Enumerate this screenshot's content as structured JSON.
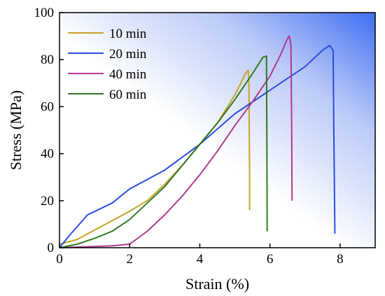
{
  "chart_data": {
    "type": "line",
    "xlabel": "Strain (%)",
    "ylabel": "Stress (MPa)",
    "xlim": [
      0,
      9
    ],
    "ylim": [
      0,
      100
    ],
    "x_ticks": [
      0,
      2,
      4,
      6,
      8
    ],
    "y_ticks": [
      0,
      20,
      40,
      60,
      80,
      100
    ],
    "grid": false,
    "legend_position": "top-left",
    "background": "white-to-blue gradient toward top-right",
    "series": [
      {
        "name": "10 min",
        "color": "#c9a227",
        "points": [
          [
            0.0,
            1.5
          ],
          [
            0.5,
            3.5
          ],
          [
            1.0,
            7.5
          ],
          [
            1.5,
            11.5
          ],
          [
            2.0,
            15.5
          ],
          [
            2.5,
            20.0
          ],
          [
            3.0,
            27.0
          ],
          [
            3.5,
            35.0
          ],
          [
            4.0,
            44.0
          ],
          [
            4.5,
            53.0
          ],
          [
            5.0,
            65.0
          ],
          [
            5.3,
            74.0
          ],
          [
            5.38,
            75.5
          ],
          [
            5.4,
            70.0
          ],
          [
            5.42,
            30.0
          ],
          [
            5.42,
            16.0
          ]
        ]
      },
      {
        "name": "20 min",
        "color": "#2a4de0",
        "points": [
          [
            0.0,
            0.0
          ],
          [
            0.3,
            5.5
          ],
          [
            0.8,
            14.0
          ],
          [
            1.5,
            19.0
          ],
          [
            2.0,
            25.0
          ],
          [
            3.0,
            33.0
          ],
          [
            4.0,
            44.0
          ],
          [
            5.0,
            57.0
          ],
          [
            6.0,
            67.0
          ],
          [
            6.5,
            72.0
          ],
          [
            7.0,
            77.0
          ],
          [
            7.5,
            84.0
          ],
          [
            7.7,
            86.0
          ],
          [
            7.8,
            84.0
          ],
          [
            7.82,
            50.0
          ],
          [
            7.85,
            6.0
          ]
        ]
      },
      {
        "name": "40 min",
        "color": "#b03a8f",
        "points": [
          [
            0.0,
            0.0
          ],
          [
            0.5,
            0.3
          ],
          [
            1.0,
            0.5
          ],
          [
            1.5,
            0.8
          ],
          [
            2.0,
            1.5
          ],
          [
            2.5,
            7.0
          ],
          [
            3.0,
            14.0
          ],
          [
            3.5,
            22.0
          ],
          [
            4.0,
            31.0
          ],
          [
            4.5,
            41.0
          ],
          [
            5.0,
            52.0
          ],
          [
            5.5,
            62.0
          ],
          [
            6.0,
            73.0
          ],
          [
            6.3,
            82.0
          ],
          [
            6.5,
            89.0
          ],
          [
            6.55,
            90.0
          ],
          [
            6.6,
            86.0
          ],
          [
            6.62,
            50.0
          ],
          [
            6.63,
            20.0
          ]
        ]
      },
      {
        "name": "60 min",
        "color": "#2f7a1f",
        "points": [
          [
            0.0,
            0.0
          ],
          [
            0.5,
            1.5
          ],
          [
            1.0,
            4.0
          ],
          [
            1.5,
            7.0
          ],
          [
            2.0,
            12.0
          ],
          [
            2.5,
            19.0
          ],
          [
            3.0,
            26.0
          ],
          [
            3.5,
            35.0
          ],
          [
            4.0,
            44.0
          ],
          [
            4.5,
            53.0
          ],
          [
            5.0,
            63.0
          ],
          [
            5.5,
            74.0
          ],
          [
            5.8,
            81.0
          ],
          [
            5.9,
            81.5
          ],
          [
            5.91,
            50.0
          ],
          [
            5.92,
            7.0
          ]
        ]
      }
    ]
  }
}
